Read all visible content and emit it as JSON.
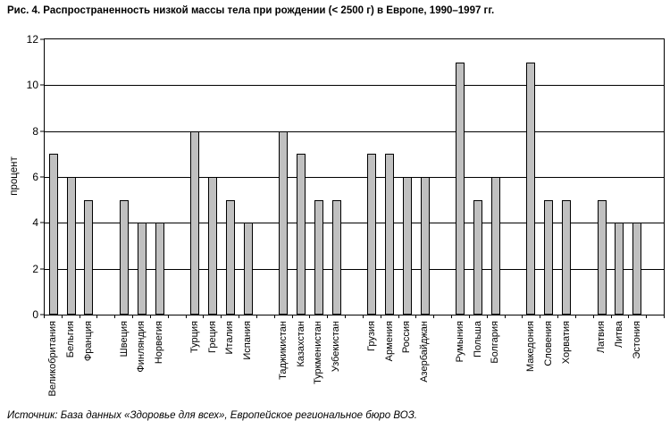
{
  "figure": {
    "source": "Источник: База данных «Здоровье для всех», Европейское региональное бюро ВОЗ."
  },
  "chart_data": {
    "type": "bar",
    "title": "Рис. 4. Распространенность низкой массы тела при рождении (< 2500 г) в Европе, 1990–1997 гг.",
    "xlabel": "",
    "ylabel": "процент",
    "categories": [
      "Великобритания",
      "Бельгия",
      "Франция",
      "Швеция",
      "Финляндия",
      "Норвегия",
      "Турция",
      "Греция",
      "Италия",
      "Испания",
      "Таджикистан",
      "Казахстан",
      "Туркменистан",
      "Узбекистан",
      "Грузия",
      "Армения",
      "Россия",
      "Азербайджан",
      "Румыния",
      "Польша",
      "Болгария",
      "Македония",
      "Словения",
      "Хорватия",
      "Латвия",
      "Литва",
      "Эстония"
    ],
    "values": [
      7,
      6,
      5,
      5,
      4,
      4,
      8,
      6,
      5,
      4,
      8,
      7,
      5,
      5,
      7,
      7,
      6,
      6,
      11,
      5,
      6,
      11,
      5,
      5,
      5,
      4,
      4
    ],
    "groups": [
      3,
      3,
      4,
      4,
      4,
      3,
      3,
      3
    ],
    "ylim": [
      0,
      12
    ],
    "yticks": [
      0,
      2,
      4,
      6,
      8,
      10,
      12
    ],
    "grid": true,
    "legend": false,
    "bar_fill": "#c0c0c0",
    "bar_border": "#000000",
    "grid_color": "#000000"
  }
}
